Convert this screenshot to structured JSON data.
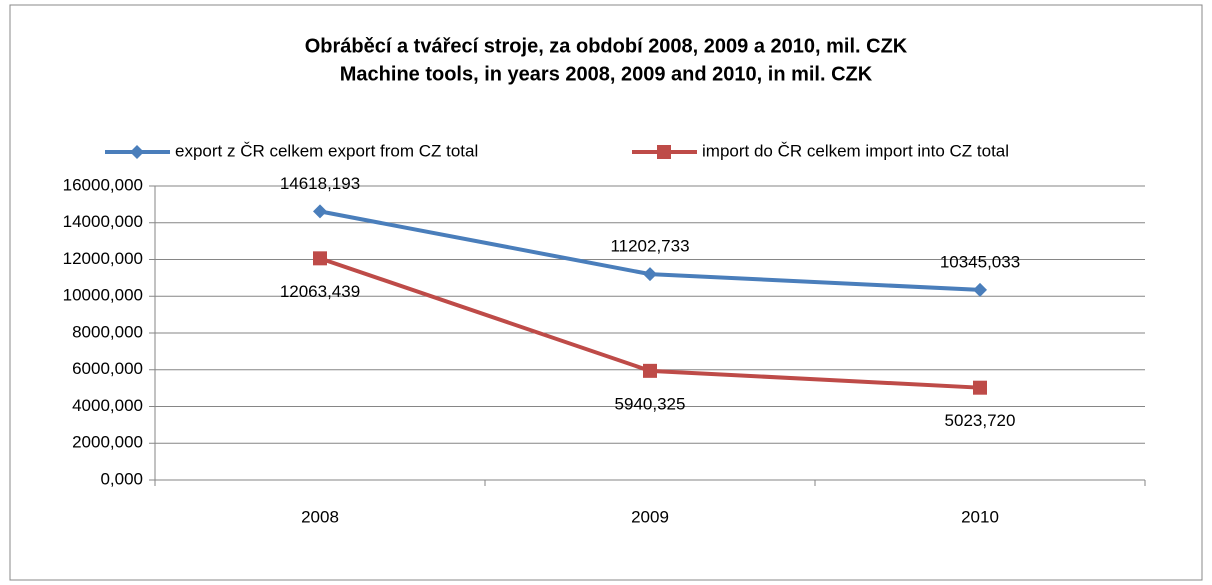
{
  "chart_data": {
    "type": "line",
    "title": "Obráběcí a tvářecí stroje, za období 2008, 2009 a 2010, mil. CZK",
    "subtitle": "Machine tools, in years 2008, 2009 and 2010, in mil. CZK",
    "categories": [
      "2008",
      "2009",
      "2010"
    ],
    "series": [
      {
        "name": "export z ČR celkem export from CZ total",
        "color": "#4a7ebb",
        "marker": "diamond",
        "values": [
          14618.193,
          11202.733,
          10345.033
        ],
        "value_labels": [
          "14618,193",
          "11202,733",
          "10345,033"
        ]
      },
      {
        "name": "import do ČR celkem import into CZ total",
        "color": "#be4b48",
        "marker": "square",
        "values": [
          12063.439,
          5940.325,
          5023.72
        ],
        "value_labels": [
          "12063,439",
          "5940,325",
          "5023,720"
        ]
      }
    ],
    "ylim": [
      0,
      16000
    ],
    "yticks": [
      {
        "value": 0,
        "label": "0,000"
      },
      {
        "value": 2000,
        "label": "2000,000"
      },
      {
        "value": 4000,
        "label": "4000,000"
      },
      {
        "value": 6000,
        "label": "6000,000"
      },
      {
        "value": 8000,
        "label": "8000,000"
      },
      {
        "value": 10000,
        "label": "10000,000"
      },
      {
        "value": 12000,
        "label": "12000,000"
      },
      {
        "value": 14000,
        "label": "14000,000"
      },
      {
        "value": 16000,
        "label": "16000,000"
      }
    ],
    "grid": true,
    "legend": "top"
  }
}
